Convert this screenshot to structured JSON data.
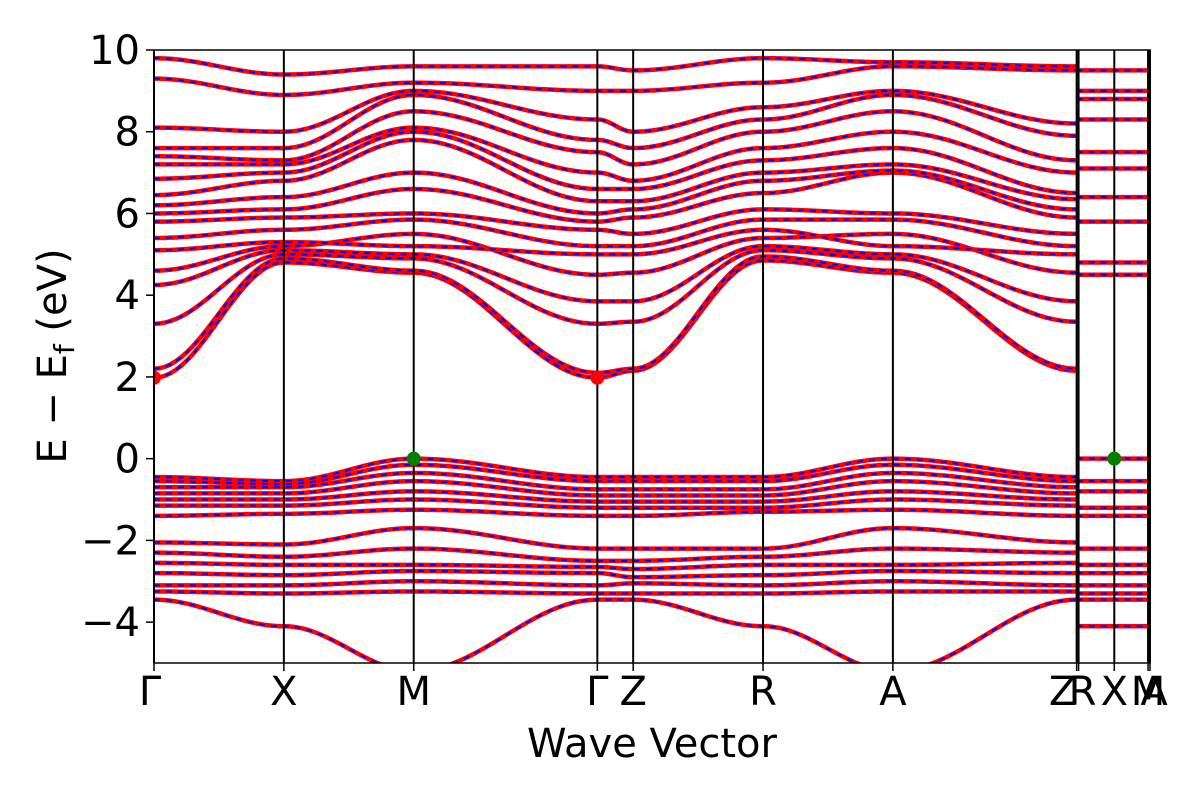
{
  "chart_data": {
    "type": "line",
    "xlabel": "Wave Vector",
    "ylabel": "E − E",
    "ylabel_sub": "f",
    "ylabel_unit": " (eV)",
    "ylim": [
      -5,
      10
    ],
    "yticks": [
      -4,
      -2,
      0,
      2,
      4,
      6,
      8,
      10
    ],
    "ytick_labels": [
      "−4",
      "−2",
      "0",
      "2",
      "4",
      "6",
      "8",
      "10"
    ],
    "xlim": [
      0,
      7.67
    ],
    "high_symmetry_points": [
      {
        "label": "Γ",
        "x": 0.0
      },
      {
        "label": "X",
        "x": 1.0
      },
      {
        "label": "M",
        "x": 2.0
      },
      {
        "label": "Γ",
        "x": 3.414
      },
      {
        "label": "Z",
        "x": 3.69
      },
      {
        "label": "R",
        "x": 4.69
      },
      {
        "label": "A",
        "x": 5.69
      },
      {
        "label": "Z",
        "x": 7.105
      },
      {
        "label": "R",
        "x": 7.12
      },
      {
        "label": "X",
        "x": 7.395
      },
      {
        "label": "M",
        "x": 7.655
      },
      {
        "label": "A",
        "x": 7.67
      }
    ],
    "line_colors": {
      "spin_up": "#ff0000",
      "spin_down": "#0000ff"
    },
    "band_extrema": {
      "cbm": [
        {
          "x": 0.0,
          "y": 1.98
        },
        {
          "x": 3.414,
          "y": 1.98
        }
      ],
      "vbm": [
        {
          "x": 2.0,
          "y": 0.0
        },
        {
          "x": 7.395,
          "y": 0.0
        }
      ]
    },
    "marker_colors": {
      "cbm": "#ff0000",
      "vbm": "#008000"
    },
    "valence_bands": [
      [
        -0.45,
        -0.55,
        0.0,
        -0.45,
        -0.45,
        -0.45,
        0.0,
        -0.45
      ],
      [
        -0.55,
        -0.62,
        -0.15,
        -0.55,
        -0.55,
        -0.55,
        -0.15,
        -0.55
      ],
      [
        -0.7,
        -0.7,
        -0.35,
        -0.75,
        -0.75,
        -0.75,
        -0.35,
        -0.7
      ],
      [
        -0.85,
        -0.85,
        -0.55,
        -0.9,
        -0.9,
        -0.9,
        -0.55,
        -0.85
      ],
      [
        -1.0,
        -1.0,
        -0.8,
        -1.05,
        -1.05,
        -1.05,
        -0.8,
        -1.0
      ],
      [
        -1.15,
        -1.15,
        -1.0,
        -1.2,
        -1.2,
        -1.2,
        -1.0,
        -1.15
      ],
      [
        -1.4,
        -1.35,
        -1.25,
        -1.4,
        -1.4,
        -1.3,
        -1.25,
        -1.4
      ],
      [
        -2.05,
        -2.1,
        -1.7,
        -2.2,
        -2.2,
        -2.2,
        -1.7,
        -2.05
      ],
      [
        -2.3,
        -2.4,
        -2.2,
        -2.5,
        -2.5,
        -2.4,
        -2.2,
        -2.3
      ],
      [
        -2.55,
        -2.6,
        -2.6,
        -2.65,
        -2.7,
        -2.6,
        -2.6,
        -2.55
      ],
      [
        -2.8,
        -2.85,
        -2.75,
        -2.8,
        -2.9,
        -2.85,
        -2.75,
        -2.8
      ],
      [
        -3.1,
        -3.1,
        -3.0,
        -3.1,
        -3.05,
        -3.1,
        -3.0,
        -3.1
      ],
      [
        -3.25,
        -3.3,
        -3.25,
        -3.3,
        -3.3,
        -3.3,
        -3.25,
        -3.25
      ],
      [
        -3.45,
        -4.1,
        -5.2,
        -3.45,
        -3.45,
        -4.1,
        -5.2,
        -3.45
      ]
    ],
    "conduction_bands": [
      [
        1.98,
        4.8,
        4.55,
        1.98,
        2.15,
        4.85,
        4.55,
        2.15
      ],
      [
        2.2,
        4.9,
        4.6,
        2.1,
        2.2,
        4.95,
        4.6,
        2.2
      ],
      [
        3.3,
        5.0,
        4.9,
        3.3,
        3.35,
        5.1,
        4.9,
        3.35
      ],
      [
        4.25,
        5.1,
        5.0,
        3.85,
        3.85,
        5.2,
        5.0,
        3.85
      ],
      [
        4.6,
        5.2,
        5.5,
        4.5,
        4.55,
        5.4,
        5.5,
        4.55
      ],
      [
        5.1,
        5.3,
        5.2,
        5.0,
        5.0,
        5.6,
        5.2,
        5.0
      ],
      [
        5.4,
        5.6,
        5.85,
        5.2,
        5.2,
        5.85,
        5.85,
        5.2
      ],
      [
        5.8,
        5.9,
        6.0,
        5.6,
        5.5,
        6.1,
        6.0,
        5.5
      ],
      [
        6.0,
        6.1,
        6.6,
        5.8,
        5.9,
        6.5,
        7.0,
        5.9
      ],
      [
        6.2,
        6.4,
        7.0,
        6.0,
        6.1,
        6.8,
        7.05,
        6.1
      ],
      [
        6.45,
        6.8,
        7.8,
        6.3,
        6.3,
        7.0,
        7.2,
        6.35
      ],
      [
        6.85,
        7.0,
        8.0,
        6.6,
        6.6,
        7.3,
        7.6,
        6.5
      ],
      [
        7.2,
        7.2,
        8.1,
        7.0,
        6.8,
        7.6,
        8.0,
        7.0
      ],
      [
        7.4,
        7.3,
        8.5,
        7.5,
        7.2,
        8.0,
        8.5,
        7.3
      ],
      [
        7.6,
        7.6,
        8.9,
        7.8,
        7.6,
        8.3,
        8.9,
        7.9
      ],
      [
        8.1,
        8.0,
        9.0,
        8.3,
        8.0,
        8.6,
        9.0,
        8.2
      ],
      [
        9.3,
        8.9,
        9.2,
        9.0,
        9.0,
        9.2,
        9.6,
        9.5
      ],
      [
        9.8,
        9.4,
        9.6,
        9.6,
        9.5,
        9.8,
        9.7,
        9.6
      ]
    ],
    "tail_bands": [
      -4.1,
      -3.45,
      -3.3,
      -3.1,
      -2.8,
      -2.6,
      -2.2,
      -1.4,
      -1.2,
      -0.8,
      -0.55,
      0.0,
      4.5,
      4.8,
      5.8,
      6.4,
      7.1,
      7.5,
      8.3,
      8.8,
      9.0,
      9.5
    ]
  }
}
